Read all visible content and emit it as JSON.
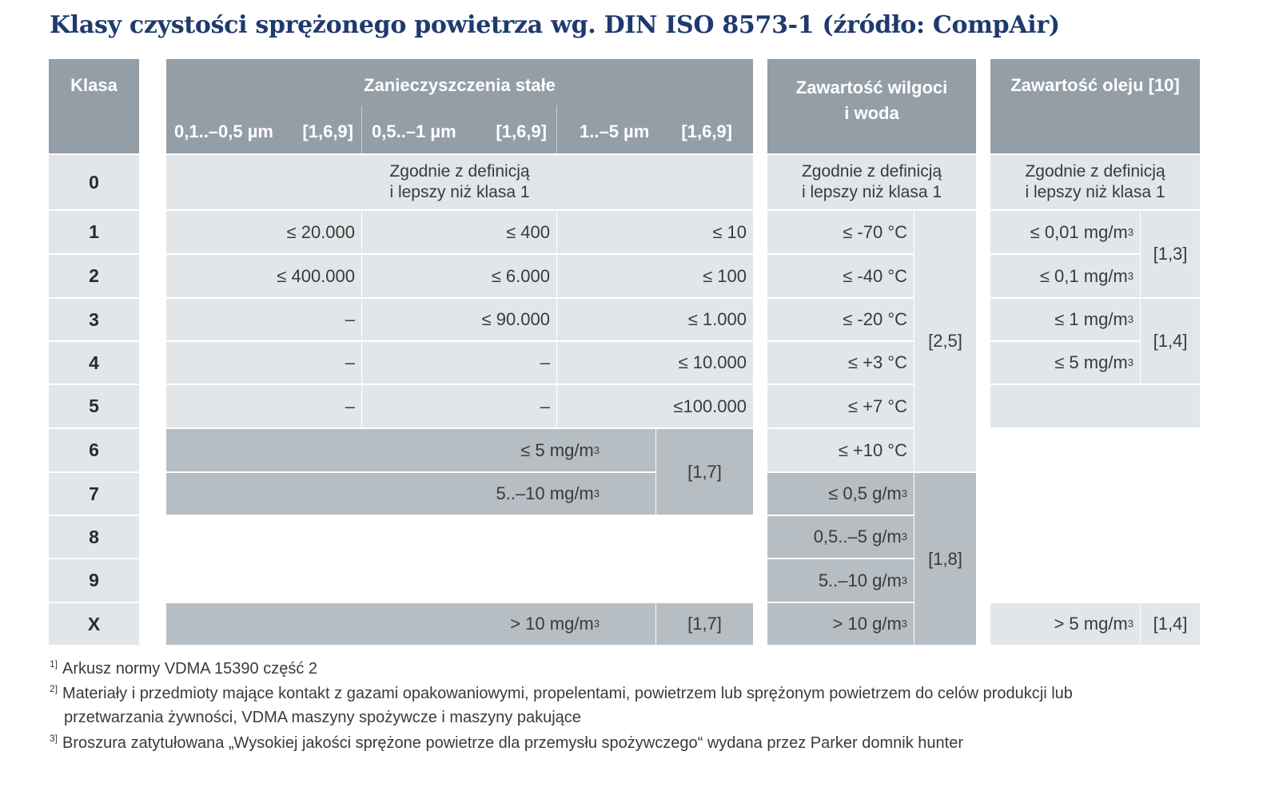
{
  "title": "Klasy czystości sprężonego powietrza wg. DIN ISO 8573-1 (źródło: CompAir)",
  "headers": {
    "klasa": "Klasa",
    "solid": "Zanieczyszczenia stałe",
    "solid_sub": [
      "0,1..–0,5 µm",
      "[1,6,9]",
      "0,5..–1 µm",
      "[1,6,9]",
      "1..–5 µm",
      "[1,6,9]"
    ],
    "moisture": "Zawartość wilgoci i woda",
    "oil": "Zawartość oleju [10]"
  },
  "classes": [
    "0",
    "1",
    "2",
    "3",
    "4",
    "5",
    "6",
    "7",
    "8",
    "9",
    "X"
  ],
  "zgodnie": [
    "Zgodnie z definicją",
    "i lepszy niż klasa 1"
  ],
  "solid_rows": [
    [
      "≤ 20.000",
      "≤ 400",
      "≤ 10"
    ],
    [
      "≤ 400.000",
      "≤ 6.000",
      "≤ 100"
    ],
    [
      "–",
      "≤ 90.000",
      "≤ 1.000"
    ],
    [
      "–",
      "–",
      "≤ 10.000"
    ],
    [
      "–",
      "–",
      "≤100.000"
    ]
  ],
  "solid_mass": {
    "c6": "≤ 5 mg/m",
    "c7": "5..–10 mg/m",
    "cx": "> 10 mg/m",
    "ref_67": "[1,7]",
    "ref_x": "[1,7]",
    "sup": "3"
  },
  "moisture_rows": [
    "≤ -70 °C",
    "≤ -40 °C",
    "≤ -20 °C",
    "≤ +3 °C",
    "≤ +7 °C",
    "≤ +10 °C"
  ],
  "moisture_ref": "[2,5]",
  "water_rows": [
    "≤ 0,5 g/m",
    "0,5..–5 g/m",
    "5..–10 g/m",
    "> 10 g/m"
  ],
  "water_ref": "[1,8]",
  "oil_rows": [
    "≤ 0,01 mg/m",
    "≤ 0,1 mg/m",
    "≤ 1 mg/m",
    "≤ 5 mg/m"
  ],
  "oil_ref_12": "[1,3]",
  "oil_ref_34": "[1,4]",
  "oil_x": "> 5 mg/m",
  "oil_ref_x": "[1,4]",
  "footnotes": [
    {
      "mark": "1]",
      "lines": [
        "Arkusz normy VDMA 15390 część 2"
      ]
    },
    {
      "mark": "2]",
      "lines": [
        "Materiały i przedmioty mające kontakt z gazami opakowaniowymi, propelentami, powietrzem lub sprężonym powietrzem do celów produkcji lub",
        "przetwarzania żywności, VDMA maszyny spożywcze i maszyny pakujące"
      ]
    },
    {
      "mark": "3]",
      "lines": [
        "Broszura zatytułowana „Wysokiej jakości sprężone powietrze dla przemysłu spożywczego“ wydana przez Parker domnik hunter"
      ]
    }
  ]
}
